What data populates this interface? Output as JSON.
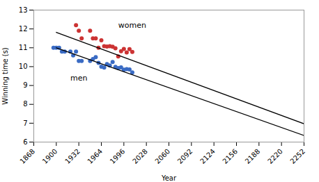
{
  "chart_data": {
    "type": "scatter",
    "xlabel": "Year",
    "ylabel": "Winning time (s)",
    "xlim": [
      1868,
      2252
    ],
    "ylim": [
      6,
      13
    ],
    "xticks": [
      1868,
      1900,
      1932,
      1964,
      1996,
      2028,
      2060,
      2092,
      2124,
      2156,
      2188,
      2220,
      2252
    ],
    "yticks": [
      6,
      7,
      8,
      9,
      10,
      11,
      12,
      13
    ],
    "series": [
      {
        "type": "scatter",
        "color": "#3a6bc4",
        "x": [
          1896,
          1900,
          1904,
          1908,
          1912,
          1920,
          1924,
          1928,
          1932,
          1936,
          1948,
          1952,
          1956,
          1960,
          1964,
          1968,
          1972,
          1976,
          1980,
          1984,
          1988,
          1992,
          1996,
          2000,
          2004,
          2008
        ],
        "values": [
          11.0,
          11.0,
          11.0,
          10.8,
          10.8,
          10.8,
          10.6,
          10.8,
          10.3,
          10.3,
          10.3,
          10.4,
          10.5,
          10.2,
          10.0,
          9.95,
          10.14,
          10.06,
          10.25,
          9.99,
          9.92,
          9.96,
          9.84,
          9.87,
          9.85,
          9.69
        ]
      },
      {
        "type": "scatter",
        "color": "#cc3333",
        "x": [
          1928,
          1932,
          1936,
          1948,
          1952,
          1956,
          1960,
          1964,
          1968,
          1972,
          1976,
          1980,
          1984,
          1988,
          1992,
          1996,
          2000,
          2004,
          2008
        ],
        "values": [
          12.2,
          11.9,
          11.5,
          11.9,
          11.5,
          11.5,
          11.0,
          11.4,
          11.08,
          11.07,
          11.08,
          11.06,
          10.97,
          10.54,
          10.82,
          10.94,
          10.75,
          10.93,
          10.78
        ]
      },
      {
        "type": "line",
        "color": "black",
        "x": [
          1900,
          2252
        ],
        "values": [
          11.0,
          6.35
        ]
      },
      {
        "type": "line",
        "color": "black",
        "x": [
          1900,
          2252
        ],
        "values": [
          11.82,
          6.97
        ]
      }
    ],
    "annotations": [
      {
        "text": "men",
        "x": 1920,
        "y": 9.25
      },
      {
        "text": "women",
        "x": 1988,
        "y": 12.05
      }
    ]
  }
}
